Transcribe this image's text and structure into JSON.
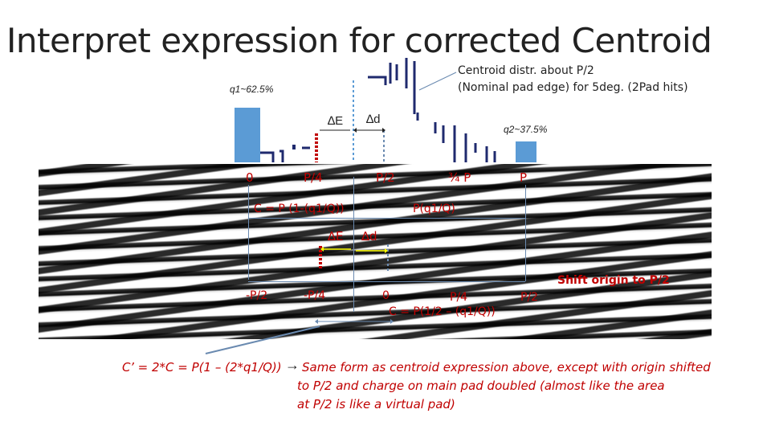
{
  "title": "Interpret expression for corrected Centroid",
  "annotation": {
    "line1": "Centroid distr. about P/2",
    "line2": "(Nominal pad edge) for 5deg. (2Pad hits)"
  },
  "q1_label": "q1~62.5%",
  "q2_label": "q2~37.5%",
  "delta_e": "∆E",
  "delta_d": "∆d",
  "top_axis": [
    "0",
    "P/4",
    "P/2",
    "¾ P",
    "P"
  ],
  "c_expr_top": "C = P (1-(q1/Q))",
  "pq_expr": "P(q1/Q)",
  "bottom_axis": [
    "-P/2",
    "-P/4",
    "0",
    "P/4",
    "P/2"
  ],
  "shift_label": "Shift origin to P/2",
  "c_expr_bottom": "C = P(1/2 – (q1/Q))",
  "c_prime_expr": "C’ = 2*C = P(1 – (2*q1/Q))",
  "arrow_glyph": "→",
  "explanation": [
    "Same form as centroid expression above, except with origin shifted",
    "to P/2 and charge on main pad doubled (almost like the area",
    "at P/2 is like a virtual pad)"
  ],
  "colors": {
    "bar_blue": "#5b9bd5",
    "navy": "#1f2a6e",
    "red": "#c00000",
    "dark_red": "#8b1010"
  }
}
